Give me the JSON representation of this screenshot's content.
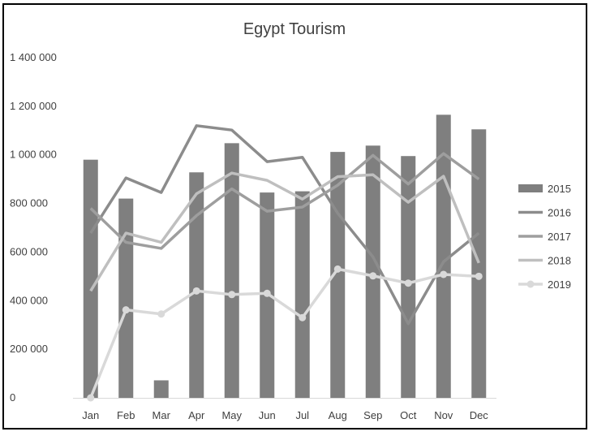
{
  "chart_data": {
    "type": "bar",
    "title": "Egypt Tourism",
    "xlabel": "",
    "ylabel": "",
    "ylim": [
      0,
      1400000
    ],
    "yticks": [
      0,
      200000,
      400000,
      600000,
      800000,
      1000000,
      1200000,
      1400000
    ],
    "ytick_labels": [
      "0",
      "200 000",
      "400 000",
      "600 000",
      "800 000",
      "1 000 000",
      "1 200 000",
      "1 400 000"
    ],
    "categories": [
      "Jan",
      "Feb",
      "Mar",
      "Apr",
      "May",
      "Jun",
      "Jul",
      "Aug",
      "Sep",
      "Oct",
      "Nov",
      "Dec"
    ],
    "grid": false,
    "legend_position": "right",
    "series": [
      {
        "name": "2015",
        "kind": "bar",
        "color": "#7f7f7f",
        "values": [
          980000,
          820000,
          72000,
          928000,
          1048000,
          845000,
          850000,
          1012000,
          1038000,
          995000,
          1165000,
          1105000
        ]
      },
      {
        "name": "2016",
        "kind": "line",
        "color": "#8c8c8c",
        "values": [
          678000,
          905000,
          845000,
          1120000,
          1102000,
          972000,
          990000,
          760000,
          580000,
          305000,
          560000,
          678000
        ]
      },
      {
        "name": "2017",
        "kind": "line",
        "color": "#9e9e9e",
        "values": [
          780000,
          640000,
          615000,
          750000,
          860000,
          768000,
          785000,
          875000,
          998000,
          880000,
          1005000,
          900000
        ]
      },
      {
        "name": "2018",
        "kind": "line",
        "color": "#bfbfbf",
        "values": [
          440000,
          678000,
          640000,
          840000,
          925000,
          895000,
          818000,
          910000,
          918000,
          805000,
          912000,
          555000
        ]
      },
      {
        "name": "2019",
        "kind": "line",
        "color": "#d9d9d9",
        "marker": "circle",
        "values": [
          0,
          362000,
          345000,
          440000,
          425000,
          430000,
          330000,
          530000,
          502000,
          472000,
          508000,
          500000
        ]
      }
    ]
  }
}
